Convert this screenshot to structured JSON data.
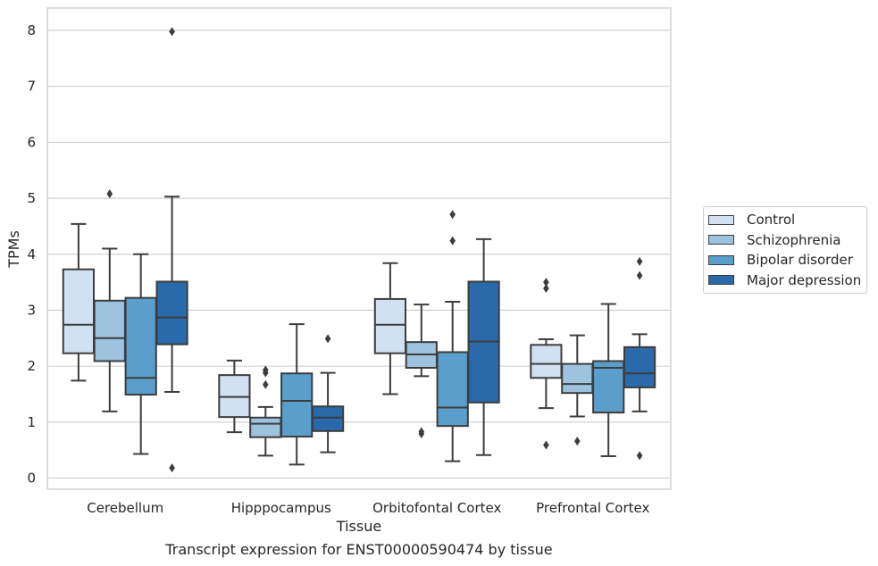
{
  "chart_data": {
    "type": "box",
    "xlabel": "Tissue",
    "ylabel": "TPMs",
    "caption": "Transcript expression for ENST00000590474 by tissue",
    "ylim": [
      -0.2,
      8.4
    ],
    "yticks": [
      "0",
      "1",
      "2",
      "3",
      "4",
      "5",
      "6",
      "7",
      "8"
    ],
    "grid": true,
    "legend_position": "right",
    "categories": [
      "Cerebellum",
      "Hipppocampus",
      "Orbitofontal Cortex",
      "Prefrontal Cortex"
    ],
    "series": [
      {
        "name": "Control",
        "color": "#d2e1f1",
        "boxes": [
          {
            "whisker_low": 1.74,
            "q1": 2.23,
            "median": 2.74,
            "q3": 3.73,
            "whisker_high": 4.54,
            "outliers": []
          },
          {
            "whisker_low": 0.82,
            "q1": 1.09,
            "median": 1.45,
            "q3": 1.84,
            "whisker_high": 2.1,
            "outliers": []
          },
          {
            "whisker_low": 1.5,
            "q1": 2.23,
            "median": 2.74,
            "q3": 3.2,
            "whisker_high": 3.84,
            "outliers": []
          },
          {
            "whisker_low": 1.25,
            "q1": 1.79,
            "median": 2.04,
            "q3": 2.38,
            "whisker_high": 2.48,
            "outliers": [
              3.5,
              3.39,
              0.59
            ]
          }
        ]
      },
      {
        "name": "Schizophrenia",
        "color": "#9dc3de",
        "boxes": [
          {
            "whisker_low": 1.19,
            "q1": 2.09,
            "median": 2.5,
            "q3": 3.17,
            "whisker_high": 4.1,
            "outliers": [
              5.08
            ]
          },
          {
            "whisker_low": 0.4,
            "q1": 0.73,
            "median": 0.97,
            "q3": 1.08,
            "whisker_high": 1.27,
            "outliers": [
              1.93,
              1.88,
              1.67
            ]
          },
          {
            "whisker_low": 1.82,
            "q1": 1.97,
            "median": 2.21,
            "q3": 2.43,
            "whisker_high": 3.1,
            "outliers": [
              0.83,
              0.79
            ]
          },
          {
            "whisker_low": 1.1,
            "q1": 1.52,
            "median": 1.68,
            "q3": 2.04,
            "whisker_high": 2.55,
            "outliers": [
              0.66
            ]
          }
        ]
      },
      {
        "name": "Bipolar disorder",
        "color": "#5a9ecc",
        "boxes": [
          {
            "whisker_low": 0.43,
            "q1": 1.49,
            "median": 1.79,
            "q3": 3.22,
            "whisker_high": 4.0,
            "outliers": []
          },
          {
            "whisker_low": 0.24,
            "q1": 0.74,
            "median": 1.38,
            "q3": 1.87,
            "whisker_high": 2.75,
            "outliers": []
          },
          {
            "whisker_low": 0.3,
            "q1": 0.93,
            "median": 1.26,
            "q3": 2.25,
            "whisker_high": 3.15,
            "outliers": [
              4.71,
              4.24
            ]
          },
          {
            "whisker_low": 0.39,
            "q1": 1.17,
            "median": 1.97,
            "q3": 2.09,
            "whisker_high": 3.11,
            "outliers": []
          }
        ]
      },
      {
        "name": "Major depression",
        "color": "#2a6aaa",
        "boxes": [
          {
            "whisker_low": 1.54,
            "q1": 2.39,
            "median": 2.87,
            "q3": 3.51,
            "whisker_high": 5.03,
            "outliers": [
              7.98,
              0.18
            ]
          },
          {
            "whisker_low": 0.46,
            "q1": 0.84,
            "median": 1.08,
            "q3": 1.28,
            "whisker_high": 1.88,
            "outliers": [
              2.49
            ]
          },
          {
            "whisker_low": 0.41,
            "q1": 1.35,
            "median": 2.44,
            "q3": 3.51,
            "whisker_high": 4.27,
            "outliers": []
          },
          {
            "whisker_low": 1.19,
            "q1": 1.62,
            "median": 1.87,
            "q3": 2.34,
            "whisker_high": 2.57,
            "outliers": [
              3.87,
              3.62,
              0.4
            ]
          }
        ]
      }
    ]
  }
}
